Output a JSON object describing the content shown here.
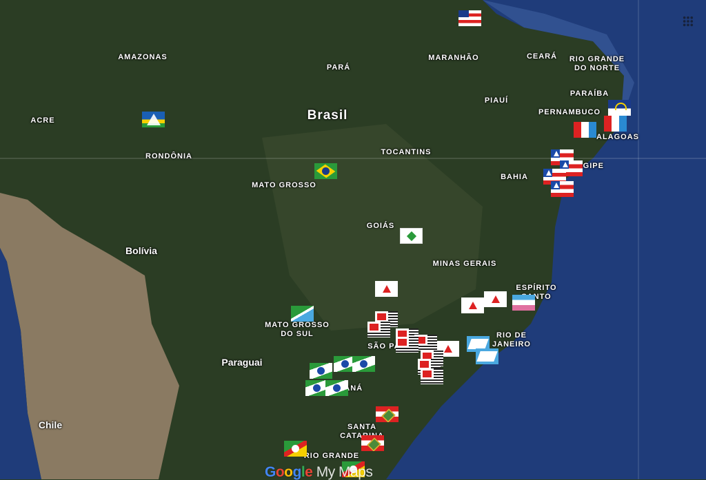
{
  "map": {
    "type": "satellite",
    "ocean_color": "#1f3c7a",
    "land_color": "#2b3d24",
    "andes_color": "#8a7a62"
  },
  "labels": {
    "amazonas": "AMAZONAS",
    "para": "PARÁ",
    "maranhao": "MARANHÃO",
    "ceara": "CEARÁ",
    "rgn": "RIO GRANDE\nDO NORTE",
    "paraiba": "PARAÍBA",
    "pernambuco": "PERNAMBUCO",
    "alagoas": "ALAGOAS",
    "sergipe": "SERGIPE",
    "piaui": "PIAUÍ",
    "brasil": "Brasil",
    "acre": "ACRE",
    "rondonia": "RONDÔNIA",
    "tocantins": "TOCANTINS",
    "bahia": "BAHIA",
    "mato_grosso": "MATO GROSSO",
    "goias": "GOIÁS",
    "minas": "MINAS GERAIS",
    "espirito_santo": "ESPÍRITO\nSANTO",
    "bolivia": "Bolívia",
    "ms": "MATO GROSSO\nDO SUL",
    "rio": "RIO DE\nJANEIRO",
    "sao_paulo": "SÃO PAULO",
    "paraguai": "Paraguai",
    "parana": "PARANÁ",
    "santa_catarina": "SANTA\nCATARINA",
    "rio_grande": "RIO GRANDE",
    "chile": "Chile"
  },
  "markers": [
    "maranhao-flag",
    "rondonia-flag",
    "brazil-flag",
    "pernambuco-flag",
    "alagoas-flag",
    "bahia-flag",
    "federal-district-flag",
    "minas-gerais-flag",
    "espirito-santo-flag",
    "mato-grosso-do-sul-flag",
    "sao-paulo-flag",
    "rio-de-janeiro-flag",
    "parana-flag",
    "santa-catarina-flag",
    "rio-grande-do-sul-flag"
  ],
  "branding": {
    "google": "Google",
    "mymaps": "My Maps"
  }
}
